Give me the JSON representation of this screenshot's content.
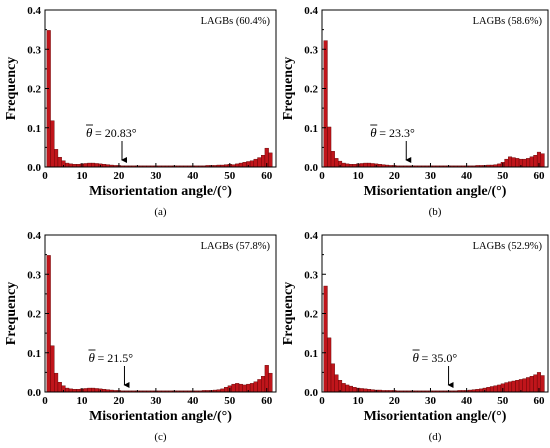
{
  "colors": {
    "bar_fill": "#c0151b",
    "bar_stroke": "#5a0000",
    "axis": "#000000"
  },
  "chart_data": [
    {
      "type": "bar",
      "panel_label": "(a)",
      "legend_text": "LAGBs (60.4%)",
      "legend_position": "top-right",
      "mean_label": "= 20.83°",
      "mean_symbol": "θ",
      "mean_value": 20.83,
      "xlabel": "Misorientation angle/(°)",
      "ylabel": "Frequency",
      "xlim": [
        0,
        62.5
      ],
      "ylim": [
        0,
        0.4
      ],
      "xticks": [
        "0",
        "10",
        "20",
        "30",
        "40",
        "50",
        "60"
      ],
      "yticks": [
        "0.0",
        "0.1",
        "0.2",
        "0.3",
        "0.4"
      ],
      "bin_width": 1.0,
      "x": [
        1,
        2,
        3,
        4,
        5,
        6,
        7,
        8,
        9,
        10,
        11,
        12,
        13,
        14,
        15,
        16,
        17,
        18,
        19,
        20,
        21,
        22,
        23,
        24,
        25,
        26,
        27,
        28,
        29,
        30,
        31,
        32,
        33,
        34,
        35,
        36,
        37,
        38,
        39,
        40,
        41,
        42,
        43,
        44,
        45,
        46,
        47,
        48,
        49,
        50,
        51,
        52,
        53,
        54,
        55,
        56,
        57,
        58,
        59,
        60,
        61
      ],
      "values": [
        0.348,
        0.118,
        0.045,
        0.025,
        0.016,
        0.01,
        0.008,
        0.007,
        0.007,
        0.008,
        0.009,
        0.01,
        0.01,
        0.009,
        0.008,
        0.007,
        0.006,
        0.005,
        0.004,
        0.004,
        0.003,
        0.003,
        0.003,
        0.003,
        0.003,
        0.003,
        0.003,
        0.003,
        0.003,
        0.003,
        0.003,
        0.003,
        0.003,
        0.003,
        0.003,
        0.003,
        0.003,
        0.003,
        0.003,
        0.003,
        0.003,
        0.003,
        0.003,
        0.004,
        0.004,
        0.004,
        0.005,
        0.005,
        0.006,
        0.007,
        0.006,
        0.008,
        0.01,
        0.012,
        0.014,
        0.016,
        0.02,
        0.024,
        0.03,
        0.048,
        0.036
      ]
    },
    {
      "type": "bar",
      "panel_label": "(b)",
      "legend_text": "LAGBs (58.6%)",
      "legend_position": "top-right",
      "mean_label": "= 23.3°",
      "mean_symbol": "θ",
      "mean_value": 23.3,
      "xlabel": "Misorientation angle/(°)",
      "ylabel": "Frequency",
      "xlim": [
        0,
        62.5
      ],
      "ylim": [
        0,
        0.4
      ],
      "xticks": [
        "0",
        "10",
        "20",
        "30",
        "40",
        "50",
        "60"
      ],
      "yticks": [
        "0.0",
        "0.1",
        "0.2",
        "0.3",
        "0.4"
      ],
      "bin_width": 1.0,
      "x": [
        1,
        2,
        3,
        4,
        5,
        6,
        7,
        8,
        9,
        10,
        11,
        12,
        13,
        14,
        15,
        16,
        17,
        18,
        19,
        20,
        21,
        22,
        23,
        24,
        25,
        26,
        27,
        28,
        29,
        30,
        31,
        32,
        33,
        34,
        35,
        36,
        37,
        38,
        39,
        40,
        41,
        42,
        43,
        44,
        45,
        46,
        47,
        48,
        49,
        50,
        51,
        52,
        53,
        54,
        55,
        56,
        57,
        58,
        59,
        60,
        61
      ],
      "values": [
        0.322,
        0.102,
        0.04,
        0.022,
        0.015,
        0.01,
        0.008,
        0.007,
        0.007,
        0.008,
        0.009,
        0.01,
        0.01,
        0.009,
        0.008,
        0.007,
        0.006,
        0.005,
        0.004,
        0.004,
        0.003,
        0.003,
        0.003,
        0.003,
        0.003,
        0.003,
        0.003,
        0.003,
        0.003,
        0.003,
        0.003,
        0.003,
        0.003,
        0.003,
        0.003,
        0.003,
        0.003,
        0.003,
        0.003,
        0.003,
        0.003,
        0.003,
        0.004,
        0.004,
        0.004,
        0.005,
        0.005,
        0.006,
        0.008,
        0.012,
        0.02,
        0.026,
        0.024,
        0.022,
        0.02,
        0.02,
        0.022,
        0.026,
        0.03,
        0.038,
        0.034
      ]
    },
    {
      "type": "bar",
      "panel_label": "(c)",
      "legend_text": "LAGBs (57.8%)",
      "legend_position": "top-right",
      "mean_label": "= 21.5°",
      "mean_symbol": "θ",
      "mean_value": 21.5,
      "xlabel": "Misorientation angle/(°)",
      "ylabel": "Frequency",
      "xlim": [
        0,
        62.5
      ],
      "ylim": [
        0,
        0.4
      ],
      "xticks": [
        "0",
        "10",
        "20",
        "30",
        "40",
        "50",
        "60"
      ],
      "yticks": [
        "0.0",
        "0.1",
        "0.2",
        "0.3",
        "0.4"
      ],
      "bin_width": 1.0,
      "x": [
        1,
        2,
        3,
        4,
        5,
        6,
        7,
        8,
        9,
        10,
        11,
        12,
        13,
        14,
        15,
        16,
        17,
        18,
        19,
        20,
        21,
        22,
        23,
        24,
        25,
        26,
        27,
        28,
        29,
        30,
        31,
        32,
        33,
        34,
        35,
        36,
        37,
        38,
        39,
        40,
        41,
        42,
        43,
        44,
        45,
        46,
        47,
        48,
        49,
        50,
        51,
        52,
        53,
        54,
        55,
        56,
        57,
        58,
        59,
        60,
        61
      ],
      "values": [
        0.348,
        0.118,
        0.048,
        0.025,
        0.016,
        0.01,
        0.008,
        0.007,
        0.007,
        0.008,
        0.009,
        0.01,
        0.01,
        0.009,
        0.008,
        0.007,
        0.006,
        0.005,
        0.004,
        0.004,
        0.003,
        0.003,
        0.003,
        0.003,
        0.003,
        0.003,
        0.003,
        0.003,
        0.003,
        0.003,
        0.003,
        0.003,
        0.003,
        0.003,
        0.003,
        0.003,
        0.003,
        0.003,
        0.003,
        0.003,
        0.003,
        0.003,
        0.004,
        0.004,
        0.004,
        0.005,
        0.006,
        0.008,
        0.012,
        0.016,
        0.02,
        0.022,
        0.02,
        0.018,
        0.02,
        0.022,
        0.026,
        0.032,
        0.04,
        0.068,
        0.048
      ]
    },
    {
      "type": "bar",
      "panel_label": "(d)",
      "legend_text": "LAGBs (52.9%)",
      "legend_position": "top-right",
      "mean_label": "= 35.0°",
      "mean_symbol": "θ",
      "mean_value": 35.0,
      "xlabel": "Misorientation angle/(°)",
      "ylabel": "Frequency",
      "xlim": [
        0,
        62.5
      ],
      "ylim": [
        0,
        0.4
      ],
      "xticks": [
        "0",
        "10",
        "20",
        "30",
        "40",
        "50",
        "60"
      ],
      "yticks": [
        "0.0",
        "0.1",
        "0.2",
        "0.3",
        "0.4"
      ],
      "bin_width": 1.0,
      "x": [
        1,
        2,
        3,
        4,
        5,
        6,
        7,
        8,
        9,
        10,
        11,
        12,
        13,
        14,
        15,
        16,
        17,
        18,
        19,
        20,
        21,
        22,
        23,
        24,
        25,
        26,
        27,
        28,
        29,
        30,
        31,
        32,
        33,
        34,
        35,
        36,
        37,
        38,
        39,
        40,
        41,
        42,
        43,
        44,
        45,
        46,
        47,
        48,
        49,
        50,
        51,
        52,
        53,
        54,
        55,
        56,
        57,
        58,
        59,
        60,
        61
      ],
      "values": [
        0.27,
        0.138,
        0.072,
        0.044,
        0.03,
        0.022,
        0.018,
        0.015,
        0.012,
        0.01,
        0.009,
        0.008,
        0.007,
        0.006,
        0.005,
        0.005,
        0.004,
        0.004,
        0.004,
        0.004,
        0.003,
        0.003,
        0.003,
        0.003,
        0.003,
        0.003,
        0.003,
        0.003,
        0.003,
        0.003,
        0.003,
        0.003,
        0.003,
        0.003,
        0.003,
        0.003,
        0.003,
        0.004,
        0.004,
        0.004,
        0.005,
        0.006,
        0.007,
        0.008,
        0.01,
        0.012,
        0.014,
        0.016,
        0.018,
        0.021,
        0.024,
        0.026,
        0.028,
        0.03,
        0.032,
        0.034,
        0.037,
        0.04,
        0.044,
        0.05,
        0.042
      ]
    }
  ]
}
